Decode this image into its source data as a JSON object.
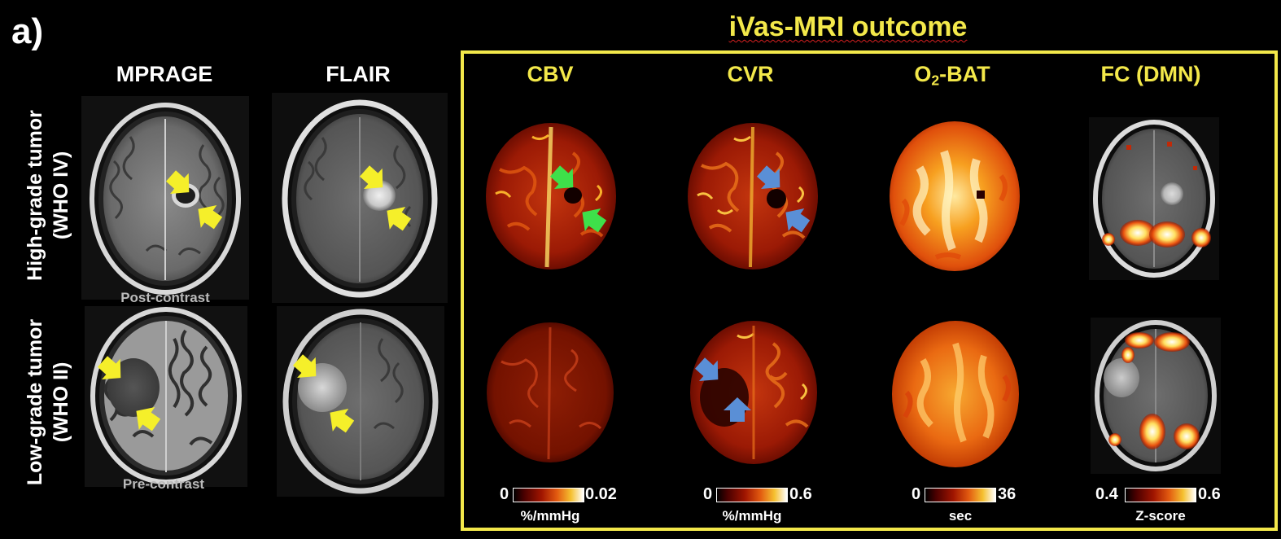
{
  "panel_label": "a)",
  "title": "iVas-MRI outcome",
  "columns": {
    "mprage": "MPRAGE",
    "flair": "FLAIR",
    "cbv": "CBV",
    "cvr": "CVR",
    "o2bat_prefix": "O",
    "o2bat_sub": "2",
    "o2bat_suffix": "-BAT",
    "fc": "FC (DMN)"
  },
  "rows": {
    "high_grade_line1": "High-grade tumor",
    "high_grade_line2": "(WHO IV)",
    "low_grade_line1": "Low-grade tumor",
    "low_grade_line2": "(WHO II)"
  },
  "captions": {
    "post_contrast": "Post-contrast",
    "pre_contrast": "Pre-contrast"
  },
  "colorbars": [
    {
      "min": "0",
      "max": "0.02",
      "unit": "%/mmHg"
    },
    {
      "min": "0",
      "max": "0.6",
      "unit": "%/mmHg"
    },
    {
      "min": "0",
      "max": "36",
      "unit": "sec"
    },
    {
      "min": "0.4",
      "max": "0.6",
      "unit": "Z-score"
    }
  ],
  "colors": {
    "accent_yellow": "#f3e84a",
    "arrow_yellow": "#f5ef2a",
    "arrow_green": "#3ee04a",
    "arrow_blue": "#5a8fd6"
  }
}
